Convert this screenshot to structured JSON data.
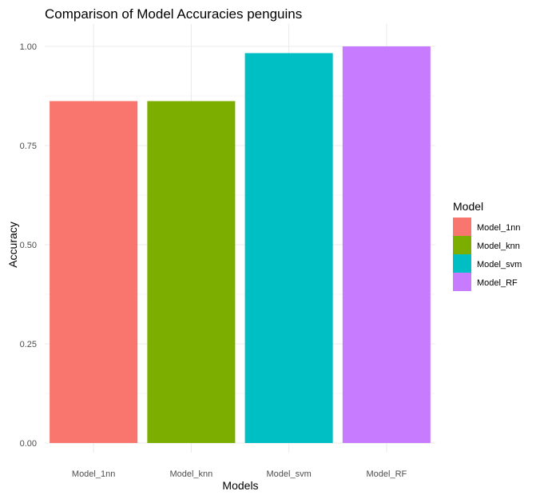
{
  "chart_data": {
    "type": "bar",
    "title": "Comparison of Model Accuracies  penguins",
    "xlabel": "Models",
    "ylabel": "Accuracy",
    "categories": [
      "Model_1nn",
      "Model_knn",
      "Model_svm",
      "Model_RF"
    ],
    "values": [
      0.862,
      0.862,
      0.983,
      1.0
    ],
    "colors": [
      "#F8766D",
      "#7CAE00",
      "#00BFC4",
      "#C77CFF"
    ],
    "ylim": [
      0,
      1.0
    ],
    "yticks": [
      0,
      0.25,
      0.5,
      0.75,
      1.0
    ],
    "ytick_labels": [
      "0.00",
      "0.25",
      "0.50",
      "0.75",
      "1.00"
    ],
    "grid": true,
    "legend": {
      "title": "Model",
      "position": "right",
      "entries": [
        "Model_1nn",
        "Model_knn",
        "Model_svm",
        "Model_RF"
      ]
    }
  }
}
